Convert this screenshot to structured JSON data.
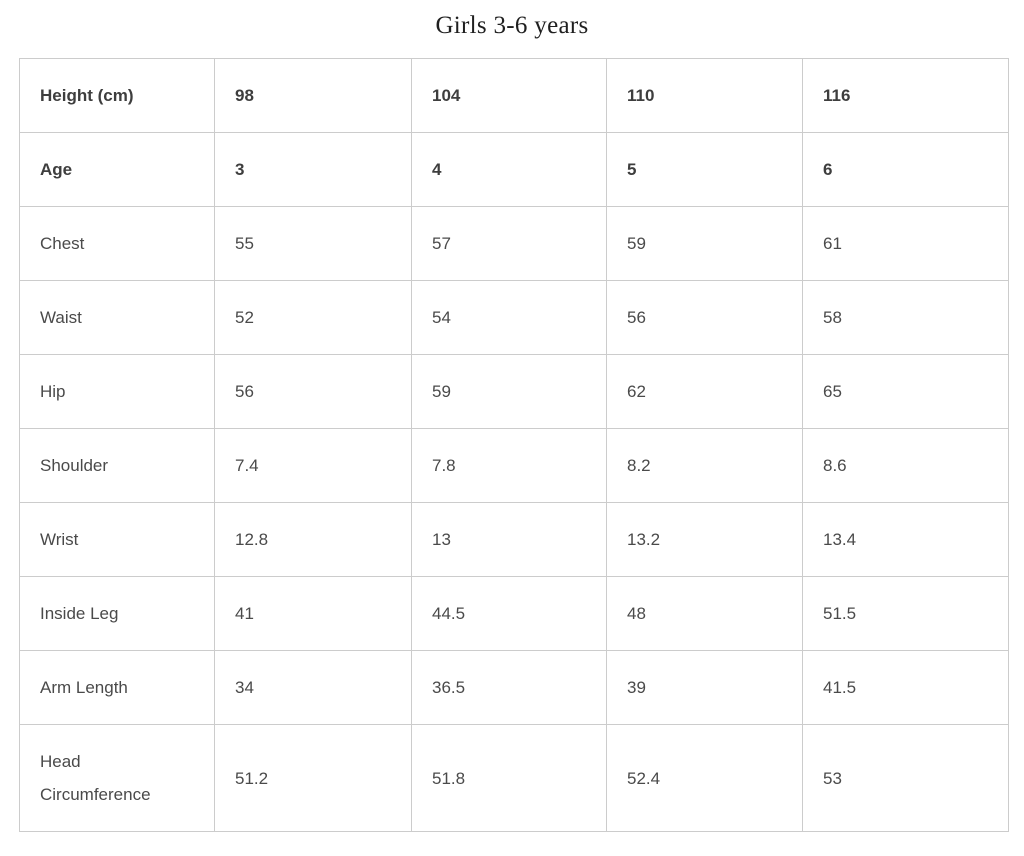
{
  "title": "Girls 3-6 years",
  "table": {
    "header_rows": [
      {
        "label": "Height (cm)",
        "values": [
          "98",
          "104",
          "110",
          "116"
        ]
      },
      {
        "label": "Age",
        "values": [
          "3",
          "4",
          "5",
          "6"
        ]
      }
    ],
    "rows": [
      {
        "label": "Chest",
        "values": [
          "55",
          "57",
          "59",
          "61"
        ]
      },
      {
        "label": "Waist",
        "values": [
          "52",
          "54",
          "56",
          "58"
        ]
      },
      {
        "label": "Hip",
        "values": [
          "56",
          "59",
          "62",
          "65"
        ]
      },
      {
        "label": "Shoulder",
        "values": [
          "7.4",
          "7.8",
          "8.2",
          "8.6"
        ]
      },
      {
        "label": "Wrist",
        "values": [
          "12.8",
          "13",
          "13.2",
          "13.4"
        ]
      },
      {
        "label": "Inside Leg",
        "values": [
          "41",
          "44.5",
          "48",
          "51.5"
        ]
      },
      {
        "label": "Arm Length",
        "values": [
          "34",
          "36.5",
          "39",
          "41.5"
        ]
      },
      {
        "label": "Head Circumference",
        "values": [
          "51.2",
          "51.8",
          "52.4",
          "53"
        ]
      }
    ]
  },
  "colors": {
    "border": "#cccccc",
    "cell_text": "#4a4a4a",
    "title_text": "#1f1f1f",
    "background": "#ffffff"
  }
}
